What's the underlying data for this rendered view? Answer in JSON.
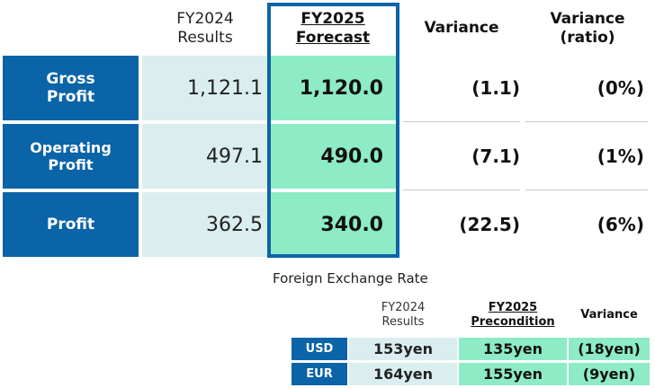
{
  "main_table": {
    "headers": {
      "results": "FY2024\nResults",
      "forecast": "FY2025\nForecast",
      "variance": "Variance",
      "ratio": "Variance\n(ratio)"
    },
    "rows": [
      {
        "label": "Gross\nProfit",
        "results": "1,121.1",
        "forecast": "1,120.0",
        "variance": "(1.1)",
        "ratio": "(0%)"
      },
      {
        "label": "Operating\nProfit",
        "results": "497.1",
        "forecast": "490.0",
        "variance": "(7.1)",
        "ratio": "(1%)"
      },
      {
        "label": "Profit",
        "results": "362.5",
        "forecast": "340.0",
        "variance": "(22.5)",
        "ratio": "(6%)"
      }
    ]
  },
  "fx_table": {
    "title": "Foreign Exchange Rate",
    "headers": {
      "results": "FY2024\nResults",
      "precondition": "FY2025\nPrecondition",
      "variance": "Variance"
    },
    "rows": [
      {
        "currency": "USD",
        "results": "153yen",
        "precondition": "135yen",
        "variance": "(18yen)"
      },
      {
        "currency": "EUR",
        "results": "164yen",
        "precondition": "155yen",
        "variance": "(9yen)"
      }
    ]
  },
  "colors": {
    "label_blue": "#0b63a8",
    "results_bg": "#daeef0",
    "forecast_bg": "#8debc6"
  }
}
